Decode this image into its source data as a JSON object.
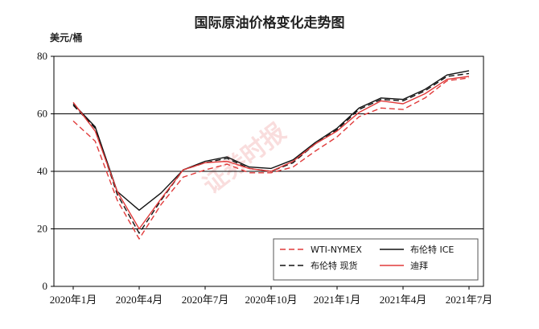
{
  "chart_data": {
    "type": "line",
    "title": "国际原油价格变化走势图",
    "ylabel": "美元/桶",
    "xlabel": "",
    "ylim": [
      0,
      80
    ],
    "yticks": [
      0,
      20,
      40,
      60,
      80
    ],
    "grid": "horizontal",
    "legend_position": "bottom-right",
    "x_tick_labels": [
      "2020年1月",
      "2020年4月",
      "2020年7月",
      "2020年10月",
      "2021年1月",
      "2021年4月",
      "2021年7月"
    ],
    "x": [
      "2020-01",
      "2020-02",
      "2020-03",
      "2020-04",
      "2020-05",
      "2020-06",
      "2020-07",
      "2020-08",
      "2020-09",
      "2020-10",
      "2020-11",
      "2020-12",
      "2021-01",
      "2021-02",
      "2021-03",
      "2021-04",
      "2021-05",
      "2021-06",
      "2021-07"
    ],
    "series": [
      {
        "name": "WTI-NYMEX",
        "color": "#e03a3a",
        "dash": "dashed",
        "values": [
          57.5,
          50.5,
          30.0,
          16.5,
          28.5,
          38.0,
          40.5,
          42.5,
          39.5,
          39.5,
          41.5,
          47.0,
          52.0,
          59.0,
          62.0,
          61.5,
          65.5,
          71.5,
          72.5
        ]
      },
      {
        "name": "布伦特 ICE",
        "color": "#111111",
        "dash": "solid",
        "values": [
          63.5,
          55.5,
          33.0,
          26.5,
          32.5,
          40.5,
          43.5,
          45.0,
          41.5,
          41.0,
          44.0,
          50.0,
          55.0,
          62.0,
          65.5,
          65.0,
          68.5,
          73.5,
          75.0
        ]
      },
      {
        "name": "布伦特 现货",
        "color": "#111111",
        "dash": "dashed",
        "values": [
          63.0,
          55.0,
          32.0,
          18.5,
          30.0,
          40.5,
          43.0,
          44.5,
          41.0,
          40.0,
          43.0,
          49.5,
          54.5,
          61.5,
          65.0,
          64.5,
          68.0,
          73.0,
          74.0
        ]
      },
      {
        "name": "迪拜",
        "color": "#e03a3a",
        "dash": "solid",
        "values": [
          64.0,
          54.0,
          33.0,
          20.0,
          30.5,
          40.5,
          43.0,
          43.5,
          41.0,
          40.0,
          43.5,
          49.5,
          54.0,
          60.5,
          64.5,
          63.5,
          67.0,
          72.0,
          73.0
        ]
      }
    ]
  },
  "watermark": "证券时报"
}
